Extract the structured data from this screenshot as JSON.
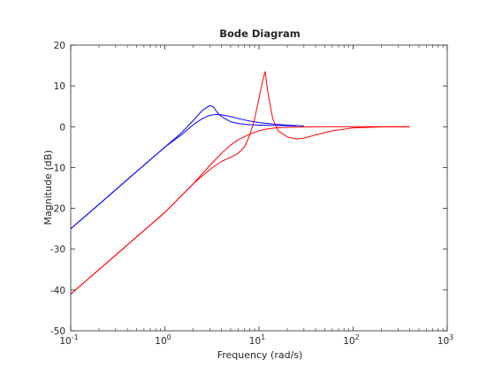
{
  "chart_data": {
    "type": "line",
    "title": "Bode Diagram",
    "xlabel": "Frequency  (rad/s)",
    "ylabel": "Magnitude (dB)",
    "xscale": "log",
    "xlim": [
      0.1,
      1000
    ],
    "ylim": [
      -50,
      20
    ],
    "xticks": [
      {
        "value": 0.1,
        "base": "10",
        "exp": "-1"
      },
      {
        "value": 1,
        "base": "10",
        "exp": "0"
      },
      {
        "value": 10,
        "base": "10",
        "exp": "1"
      },
      {
        "value": 100,
        "base": "10",
        "exp": "2"
      },
      {
        "value": 1000,
        "base": "10",
        "exp": "3"
      }
    ],
    "yticks": [
      20,
      10,
      0,
      -10,
      -20,
      -30,
      -40,
      -50
    ],
    "grid": false,
    "legend": "none",
    "series": [
      {
        "color": "#0000ff",
        "x": [
          0.1,
          0.2,
          0.5,
          1,
          1.5,
          2,
          2.5,
          3,
          3.3,
          3.6,
          4,
          4.5,
          5,
          6,
          7,
          8,
          10,
          15,
          20,
          25
        ],
        "y": [
          -25,
          -19,
          -11,
          -5,
          -1.5,
          1.5,
          4,
          5.2,
          4.8,
          3.5,
          2.5,
          1.8,
          1.2,
          0.8,
          0.6,
          0.5,
          0.4,
          0.3,
          0.25,
          0.2
        ]
      },
      {
        "color": "#0000ff",
        "x": [
          0.1,
          0.2,
          0.5,
          1,
          1.5,
          2,
          2.5,
          3,
          3.5,
          4,
          5,
          6,
          8,
          10,
          15,
          20,
          30
        ],
        "y": [
          -25,
          -19,
          -11,
          -5,
          -2,
          0.5,
          2,
          2.8,
          3,
          2.9,
          2.5,
          2,
          1.4,
          1,
          0.6,
          0.4,
          0.2
        ]
      },
      {
        "color": "#ff0000",
        "x": [
          0.1,
          0.2,
          0.5,
          1,
          2,
          3,
          4,
          5,
          6,
          7,
          8,
          9,
          10,
          11,
          11.6,
          12.5,
          14,
          16,
          20,
          25,
          30,
          40,
          60,
          100,
          200,
          400
        ],
        "y": [
          -41,
          -35,
          -27,
          -21,
          -14,
          -10.5,
          -8.5,
          -7.5,
          -6.5,
          -5,
          -2,
          2,
          7,
          11.5,
          13.5,
          8,
          2,
          -1,
          -2.5,
          -3,
          -2.8,
          -2,
          -1,
          -0.3,
          -0.05,
          0
        ]
      },
      {
        "color": "#ff0000",
        "x": [
          0.1,
          0.2,
          0.5,
          1,
          2,
          3,
          4,
          5,
          6,
          8,
          10,
          12,
          15,
          20,
          30,
          50,
          100,
          200,
          400
        ],
        "y": [
          -41,
          -35,
          -27,
          -21,
          -14,
          -9.5,
          -6.5,
          -4.5,
          -3.2,
          -1.8,
          -1,
          -0.6,
          -0.3,
          -0.15,
          -0.05,
          0,
          0,
          0,
          0
        ]
      }
    ]
  }
}
